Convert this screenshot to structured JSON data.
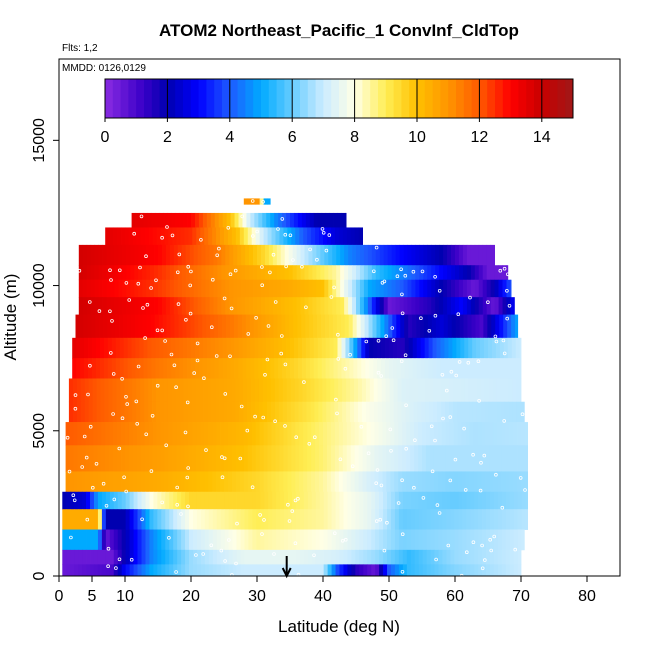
{
  "chart_data": {
    "type": "heatmap",
    "title": "ATOM2 Northeast_Pacific_1 ConvInf_CldTop",
    "flights_label": "Flts: 1,2",
    "dates_label": "MMDD: 0126,0129",
    "xlabel": "Latitude (deg N)",
    "ylabel": "Altitude (m)",
    "xlim": [
      0,
      85
    ],
    "ylim": [
      0,
      17800
    ],
    "x_ticks": [
      0,
      5,
      10,
      20,
      30,
      40,
      50,
      60,
      70,
      80
    ],
    "y_ticks": [
      0,
      5000,
      10000,
      15000
    ],
    "x_tick_labels": [
      "0",
      "5",
      "10",
      "20",
      "30",
      "40",
      "50",
      "60",
      "70",
      "80"
    ],
    "y_tick_labels": [
      "0",
      "5000",
      "10000",
      "15000"
    ],
    "colorbar": {
      "min": 0,
      "max": 15,
      "ticks": [
        0,
        2,
        4,
        6,
        8,
        10,
        12,
        14
      ],
      "tick_labels": [
        "0",
        "2",
        "4",
        "6",
        "8",
        "10",
        "12",
        "14"
      ],
      "stops": [
        {
          "v": 0,
          "c": "#8a2be2"
        },
        {
          "v": 1.2,
          "c": "#3b00c8"
        },
        {
          "v": 2,
          "c": "#0000b0"
        },
        {
          "v": 3,
          "c": "#0000ff"
        },
        {
          "v": 4,
          "c": "#1e5aff"
        },
        {
          "v": 5,
          "c": "#00aaff"
        },
        {
          "v": 6,
          "c": "#66ccff"
        },
        {
          "v": 7,
          "c": "#ccecff"
        },
        {
          "v": 8,
          "c": "#ffffe6"
        },
        {
          "v": 9,
          "c": "#ffee55"
        },
        {
          "v": 10,
          "c": "#ffc000"
        },
        {
          "v": 11,
          "c": "#ff9500"
        },
        {
          "v": 12,
          "c": "#ff5a00"
        },
        {
          "v": 13,
          "c": "#ff0000"
        },
        {
          "v": 14,
          "c": "#c80000"
        },
        {
          "v": 15,
          "c": "#a01818"
        }
      ]
    },
    "arrow_latitude": 34.5,
    "rows": [
      {
        "y0": 12800,
        "y1": 13000,
        "x0": 28,
        "x1": 32,
        "anchors": [
          [
            28,
            11
          ],
          [
            30.5,
            11
          ],
          [
            31,
            5
          ],
          [
            32,
            5
          ]
        ]
      },
      {
        "y0": 12000,
        "y1": 12500,
        "x0": 11,
        "x1": 43.5,
        "anchors": [
          [
            11,
            13.5
          ],
          [
            20,
            13
          ],
          [
            26,
            10
          ],
          [
            29,
            7
          ],
          [
            33,
            4.5
          ],
          [
            39,
            2
          ],
          [
            43.5,
            2
          ]
        ]
      },
      {
        "y0": 11400,
        "y1": 12000,
        "x0": 7,
        "x1": 46,
        "anchors": [
          [
            7,
            13.5
          ],
          [
            20,
            12.5
          ],
          [
            27,
            10
          ],
          [
            31,
            7
          ],
          [
            37,
            4
          ],
          [
            42,
            2.5
          ],
          [
            46,
            2
          ]
        ]
      },
      {
        "y0": 10700,
        "y1": 11400,
        "x0": 3,
        "x1": 66,
        "anchors": [
          [
            3,
            13.8
          ],
          [
            15,
            13
          ],
          [
            24,
            11.5
          ],
          [
            31,
            9.5
          ],
          [
            37,
            7
          ],
          [
            44,
            4.5
          ],
          [
            52,
            3
          ],
          [
            58,
            2
          ],
          [
            62,
            0.5
          ],
          [
            66,
            0.5
          ]
        ]
      },
      {
        "y0": 10200,
        "y1": 10700,
        "x0": 3,
        "x1": 68,
        "anchors": [
          [
            3,
            13.8
          ],
          [
            15,
            12.5
          ],
          [
            25,
            11
          ],
          [
            35,
            10
          ],
          [
            42,
            8.5
          ],
          [
            48,
            5.5
          ],
          [
            56,
            3.5
          ],
          [
            62,
            2
          ],
          [
            65,
            0.5
          ],
          [
            68,
            0.5
          ]
        ]
      },
      {
        "y0": 9600,
        "y1": 10200,
        "x0": 3,
        "x1": 68.5,
        "anchors": [
          [
            3,
            13.5
          ],
          [
            14,
            12.5
          ],
          [
            26,
            11
          ],
          [
            35,
            10.5
          ],
          [
            40,
            10
          ],
          [
            47,
            5
          ],
          [
            52,
            4
          ],
          [
            58,
            2
          ],
          [
            63,
            0.5
          ],
          [
            66,
            2
          ],
          [
            68.5,
            4
          ]
        ]
      },
      {
        "y0": 9000,
        "y1": 9600,
        "x0": 3,
        "x1": 69,
        "anchors": [
          [
            3,
            13.8
          ],
          [
            15,
            13
          ],
          [
            26,
            11
          ],
          [
            36,
            10
          ],
          [
            43,
            9
          ],
          [
            50,
            0.5
          ],
          [
            56,
            1.5
          ],
          [
            61,
            3
          ],
          [
            66,
            0.5
          ],
          [
            69,
            3
          ]
        ]
      },
      {
        "y0": 8200,
        "y1": 9000,
        "x0": 2.5,
        "x1": 69.5,
        "anchors": [
          [
            2.5,
            13.8
          ],
          [
            14,
            13
          ],
          [
            26,
            11.5
          ],
          [
            36,
            10
          ],
          [
            44,
            9
          ],
          [
            49,
            5
          ],
          [
            53,
            1.5
          ],
          [
            58,
            2.5
          ],
          [
            64,
            1
          ],
          [
            69.5,
            5
          ]
        ]
      },
      {
        "y0": 7500,
        "y1": 8200,
        "x0": 2,
        "x1": 70,
        "anchors": [
          [
            2,
            13.5
          ],
          [
            14,
            12
          ],
          [
            26,
            11
          ],
          [
            35,
            10
          ],
          [
            42,
            9
          ],
          [
            47,
            2
          ],
          [
            52,
            1.5
          ],
          [
            57,
            4
          ],
          [
            63,
            6
          ],
          [
            70,
            7
          ]
        ]
      },
      {
        "y0": 6800,
        "y1": 7500,
        "x0": 2,
        "x1": 70,
        "anchors": [
          [
            2,
            13
          ],
          [
            15,
            11.5
          ],
          [
            27,
            10.5
          ],
          [
            36,
            9.5
          ],
          [
            43,
            8.5
          ],
          [
            50,
            7.5
          ],
          [
            58,
            7
          ],
          [
            70,
            7
          ]
        ]
      },
      {
        "y0": 6000,
        "y1": 6800,
        "x0": 1.5,
        "x1": 70,
        "anchors": [
          [
            1.5,
            12.5
          ],
          [
            15,
            11
          ],
          [
            27,
            10.5
          ],
          [
            37,
            9.5
          ],
          [
            45,
            8.5
          ],
          [
            52,
            7.3
          ],
          [
            70,
            7
          ]
        ]
      },
      {
        "y0": 5300,
        "y1": 6000,
        "x0": 1.5,
        "x1": 70.5,
        "anchors": [
          [
            1.5,
            12.5
          ],
          [
            15,
            11
          ],
          [
            27,
            10.5
          ],
          [
            38,
            9.2
          ],
          [
            46,
            8
          ],
          [
            54,
            7.2
          ],
          [
            60,
            6.8
          ],
          [
            70.5,
            6.7
          ]
        ]
      },
      {
        "y0": 4500,
        "y1": 5300,
        "x0": 1,
        "x1": 71,
        "anchors": [
          [
            1,
            12
          ],
          [
            15,
            11
          ],
          [
            28,
            10.2
          ],
          [
            38,
            9
          ],
          [
            47,
            8
          ],
          [
            55,
            7
          ],
          [
            63,
            6.7
          ],
          [
            71,
            6.8
          ]
        ]
      },
      {
        "y0": 3600,
        "y1": 4500,
        "x0": 1,
        "x1": 71,
        "anchors": [
          [
            1,
            11.5
          ],
          [
            15,
            10.8
          ],
          [
            28,
            10
          ],
          [
            40,
            8.8
          ],
          [
            48,
            7.5
          ],
          [
            56,
            6.7
          ],
          [
            71,
            6.7
          ]
        ]
      },
      {
        "y0": 2900,
        "y1": 3600,
        "x0": 1,
        "x1": 71,
        "anchors": [
          [
            1,
            11
          ],
          [
            15,
            10.5
          ],
          [
            30,
            9.5
          ],
          [
            40,
            8.5
          ],
          [
            47,
            7.2
          ],
          [
            52,
            6.5
          ],
          [
            60,
            6.3
          ],
          [
            71,
            6.5
          ]
        ]
      },
      {
        "y0": 2300,
        "y1": 2900,
        "x0": 0.5,
        "x1": 71,
        "anchors": [
          [
            0.5,
            2
          ],
          [
            4,
            2.5
          ],
          [
            6,
            5
          ],
          [
            10,
            6
          ],
          [
            14,
            8
          ],
          [
            20,
            9.5
          ],
          [
            30,
            9.5
          ],
          [
            40,
            8.5
          ],
          [
            47,
            7.5
          ],
          [
            52,
            6.2
          ],
          [
            60,
            6
          ],
          [
            71,
            6.5
          ]
        ]
      },
      {
        "y0": 1600,
        "y1": 2300,
        "x0": 0.5,
        "x1": 71,
        "anchors": [
          [
            0.5,
            10.5
          ],
          [
            6,
            10.5
          ],
          [
            7,
            2
          ],
          [
            10,
            2
          ],
          [
            14,
            5.5
          ],
          [
            20,
            8
          ],
          [
            30,
            9
          ],
          [
            40,
            8.5
          ],
          [
            47,
            7.5
          ],
          [
            52,
            6
          ],
          [
            60,
            6.3
          ],
          [
            71,
            6.8
          ]
        ]
      },
      {
        "y0": 900,
        "y1": 1600,
        "x0": 0.5,
        "x1": 70.5,
        "anchors": [
          [
            0.5,
            5
          ],
          [
            6,
            5
          ],
          [
            7,
            0.5
          ],
          [
            10,
            2
          ],
          [
            14,
            4.5
          ],
          [
            20,
            7
          ],
          [
            30,
            8.5
          ],
          [
            40,
            8
          ],
          [
            47,
            7
          ],
          [
            52,
            6.2
          ],
          [
            60,
            6.5
          ],
          [
            70.5,
            7
          ]
        ]
      },
      {
        "y0": 400,
        "y1": 900,
        "x0": 0.5,
        "x1": 70,
        "anchors": [
          [
            0.5,
            0.5
          ],
          [
            8,
            0.5
          ],
          [
            10,
            2
          ],
          [
            14,
            4.5
          ],
          [
            20,
            6.5
          ],
          [
            28,
            7.5
          ],
          [
            36,
            7.5
          ],
          [
            42,
            7.2
          ],
          [
            48,
            6.5
          ],
          [
            53,
            5.5
          ],
          [
            60,
            6.5
          ],
          [
            70,
            7
          ]
        ]
      },
      {
        "y0": 0,
        "y1": 400,
        "x0": 0.5,
        "x1": 70,
        "anchors": [
          [
            0.5,
            0.5
          ],
          [
            8,
            1
          ],
          [
            10,
            3
          ],
          [
            14,
            5
          ],
          [
            20,
            6.5
          ],
          [
            28,
            7
          ],
          [
            36,
            7
          ],
          [
            40,
            7
          ],
          [
            42,
            4
          ],
          [
            45,
            1.5
          ],
          [
            48,
            0.5
          ],
          [
            50,
            4
          ],
          [
            53,
            5.5
          ],
          [
            60,
            6.3
          ],
          [
            70,
            7
          ]
        ]
      }
    ]
  }
}
